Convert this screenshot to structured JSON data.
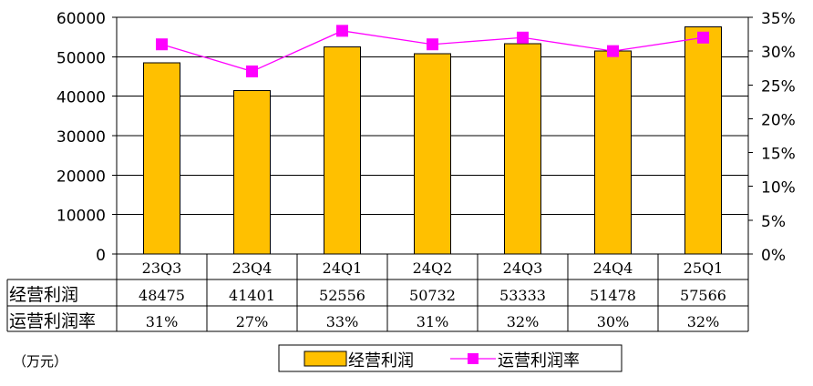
{
  "chart_data": {
    "type": "bar+line",
    "categories": [
      "23Q3",
      "23Q4",
      "24Q1",
      "24Q2",
      "24Q3",
      "24Q4",
      "25Q1"
    ],
    "series": [
      {
        "name": "经营利润",
        "type": "bar",
        "axis": "left",
        "values": [
          48475,
          41401,
          52556,
          50732,
          53333,
          51478,
          57566
        ]
      },
      {
        "name": "运营利润率",
        "type": "line",
        "axis": "right",
        "values": [
          31,
          27,
          33,
          31,
          32,
          30,
          32
        ]
      }
    ],
    "left_axis": {
      "min": 0,
      "max": 60000,
      "step": 10000,
      "ticks": [
        "0",
        "10000",
        "20000",
        "30000",
        "40000",
        "50000",
        "60000"
      ]
    },
    "right_axis": {
      "min": 0,
      "max": 35,
      "step": 5,
      "unit": "%",
      "ticks": [
        "0%",
        "5%",
        "10%",
        "15%",
        "20%",
        "25%",
        "30%",
        "35%"
      ]
    },
    "table": {
      "rows": [
        {
          "label": "经营利润",
          "values": [
            "48475",
            "41401",
            "52556",
            "50732",
            "53333",
            "51478",
            "57566"
          ]
        },
        {
          "label": "运营利润率",
          "values": [
            "31%",
            "27%",
            "33%",
            "31%",
            "32%",
            "30%",
            "32%"
          ]
        }
      ]
    },
    "legend": {
      "position": "bottom-center",
      "items": [
        "经营利润",
        "运营利润率"
      ]
    },
    "unit_note": "（万元）",
    "colors": {
      "bar": "#FFC000",
      "bar_stroke": "#000000",
      "line": "#FF00FF",
      "marker": "#FF00FF",
      "grid": "#000000"
    },
    "grid": true
  }
}
